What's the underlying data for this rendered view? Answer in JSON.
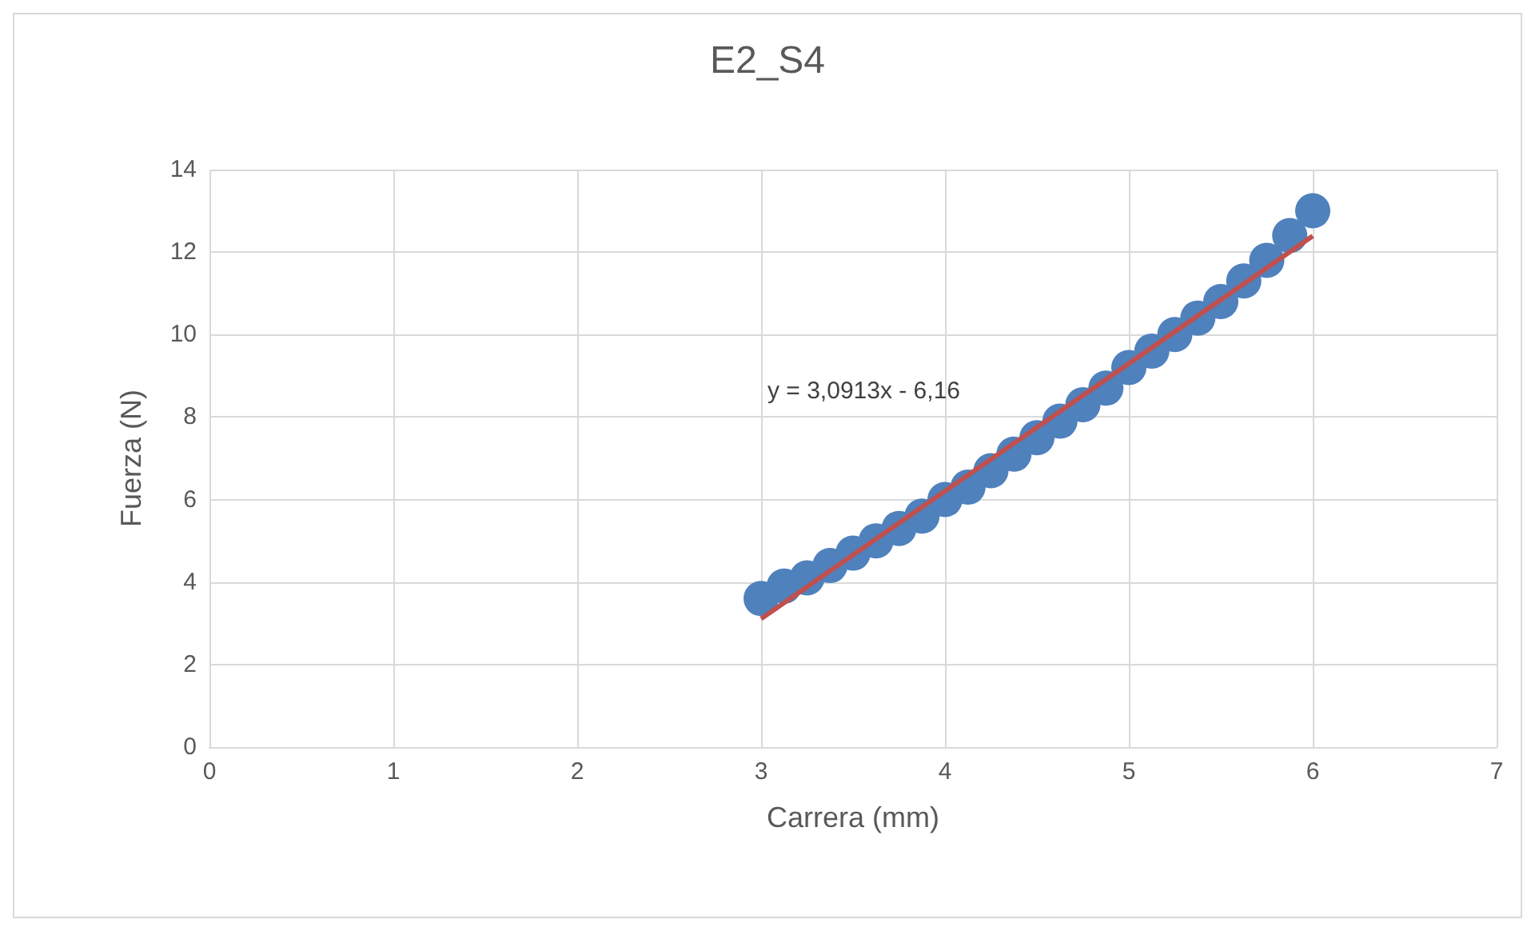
{
  "chart_data": {
    "type": "scatter",
    "title": "E2_S4",
    "xlabel": "Carrera (mm)",
    "ylabel": "Fuerza (N)",
    "xlim": [
      0,
      7
    ],
    "xticks": [
      0,
      1,
      2,
      3,
      4,
      5,
      6,
      7
    ],
    "ylim": [
      0,
      14
    ],
    "yticks": [
      0,
      2,
      4,
      6,
      8,
      10,
      12,
      14
    ],
    "grid": true,
    "series": [
      {
        "color": "#4f81bd",
        "marker": "circle",
        "x": [
          3.0,
          3.125,
          3.25,
          3.375,
          3.5,
          3.625,
          3.75,
          3.875,
          4.0,
          4.125,
          4.25,
          4.375,
          4.5,
          4.625,
          4.75,
          4.875,
          5.0,
          5.125,
          5.25,
          5.375,
          5.5,
          5.625,
          5.75,
          5.875,
          6.0
        ],
        "values": [
          3.6,
          3.9,
          4.1,
          4.4,
          4.7,
          5.0,
          5.3,
          5.6,
          6.0,
          6.3,
          6.7,
          7.1,
          7.5,
          7.9,
          8.3,
          8.7,
          9.2,
          9.6,
          10.0,
          10.4,
          10.8,
          11.3,
          11.8,
          12.4,
          13.0
        ]
      },
      {
        "type": "line",
        "color": "#c0504d",
        "x": [
          3,
          6
        ],
        "values": [
          3.11,
          12.39
        ]
      }
    ],
    "annotations": [
      "y = 3,0913x - 6,16"
    ]
  }
}
